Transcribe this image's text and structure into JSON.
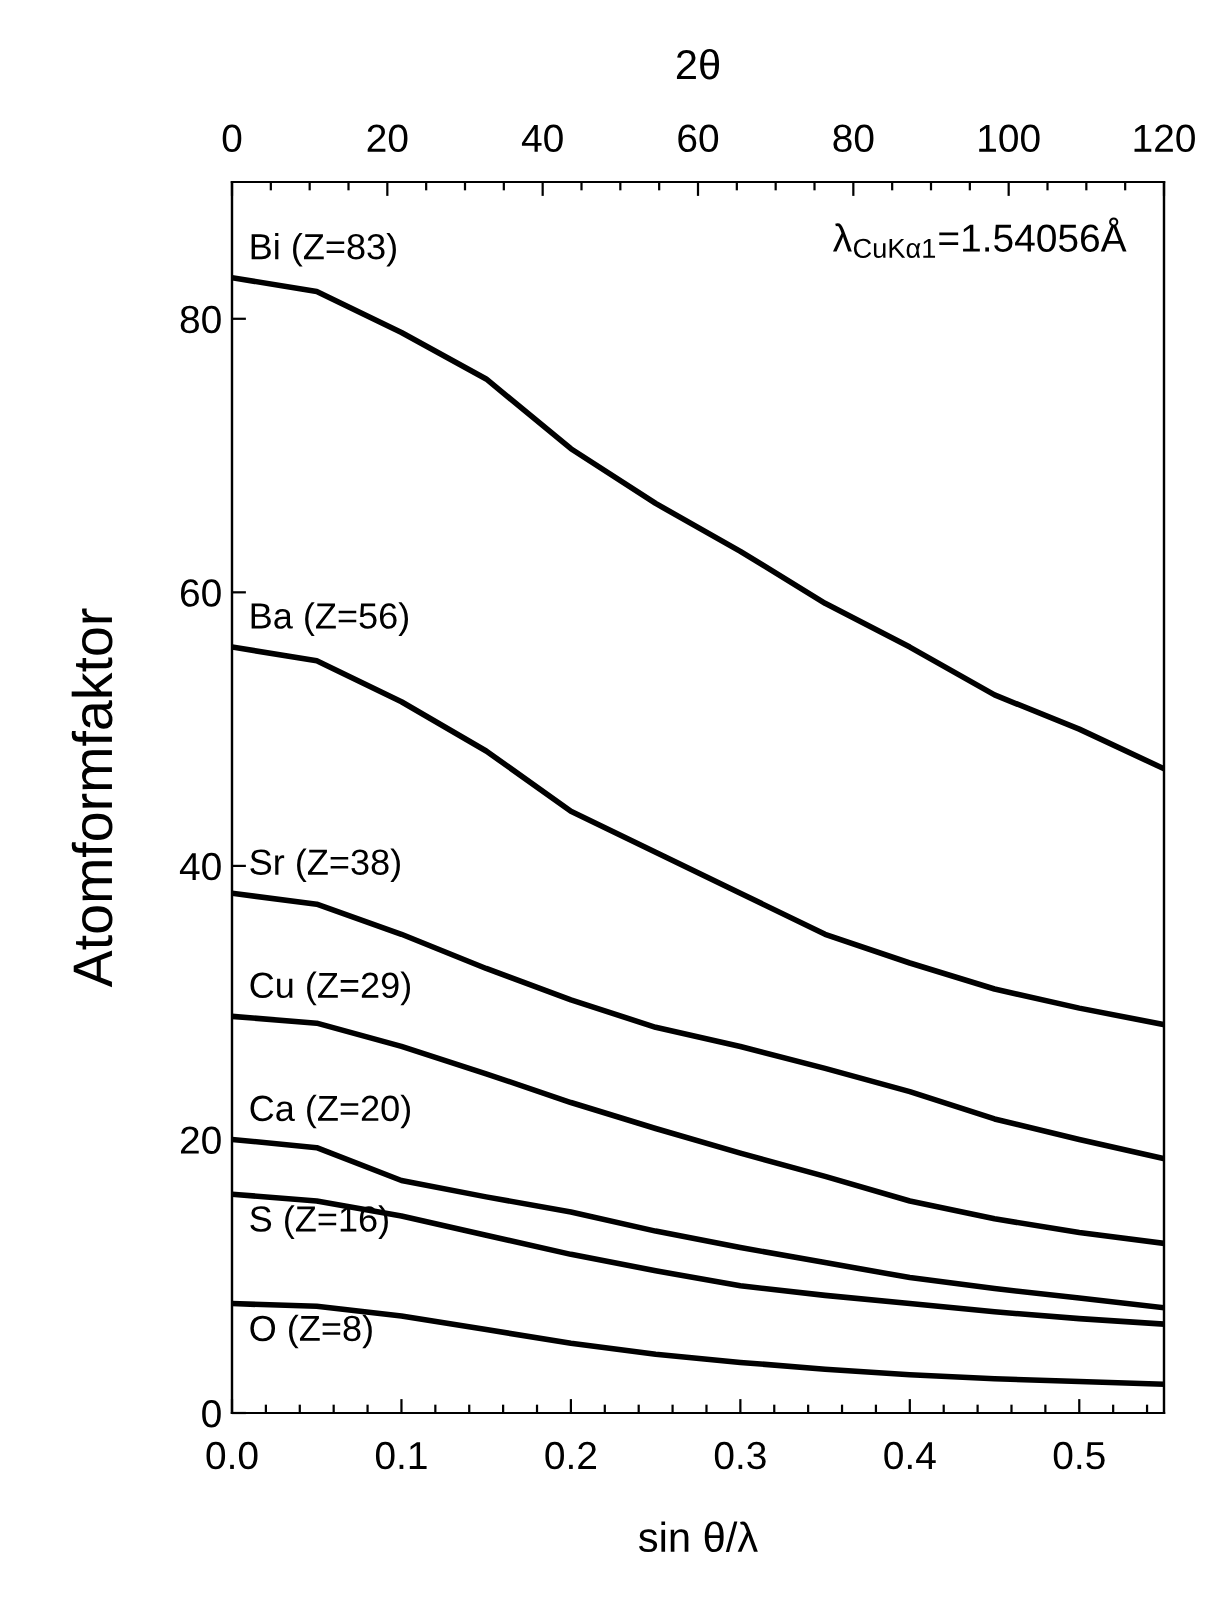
{
  "chart_data": {
    "type": "line",
    "xlabel": "sin θ/λ",
    "ylabel": "Atomformfaktor",
    "x2label": "2θ",
    "x": [
      0,
      0.05,
      0.1,
      0.15,
      0.2,
      0.25,
      0.3,
      0.35,
      0.4,
      0.45,
      0.5,
      0.55
    ],
    "series": [
      {
        "name": "Bi (Z=83)",
        "color": "#000000",
        "values": [
          83,
          82,
          79,
          75.6,
          70.5,
          66.5,
          63,
          59.2,
          56,
          52.5,
          50,
          47.1
        ]
      },
      {
        "name": "Ba (Z=56)",
        "color": "#000000",
        "values": [
          56,
          55,
          52,
          48.4,
          44,
          41,
          38,
          35,
          32.9,
          31,
          29.6,
          28.4
        ]
      },
      {
        "name": "Sr (Z=38)",
        "color": "#000000",
        "values": [
          38,
          37.2,
          35,
          32.5,
          30.2,
          28.2,
          26.8,
          25.2,
          23.5,
          21.5,
          20,
          18.6
        ]
      },
      {
        "name": "Cu (Z=29)",
        "color": "#000000",
        "values": [
          29,
          28.5,
          26.8,
          24.8,
          22.7,
          20.8,
          19,
          17.3,
          15.5,
          14.2,
          13.2,
          12.4
        ]
      },
      {
        "name": "Ca (Z=20)",
        "color": "#000000",
        "values": [
          20,
          19.4,
          17,
          15.8,
          14.7,
          13.3,
          12.1,
          11,
          9.9,
          9.1,
          8.4,
          7.7
        ]
      },
      {
        "name": "S (Z=16)",
        "color": "#000000",
        "values": [
          16,
          15.5,
          14.4,
          13,
          11.6,
          10.4,
          9.3,
          8.6,
          8,
          7.4,
          6.9,
          6.5
        ]
      },
      {
        "name": "O (Z=8)",
        "color": "#000000",
        "values": [
          8,
          7.8,
          7.1,
          6.1,
          5.1,
          4.3,
          3.7,
          3.2,
          2.8,
          2.5,
          2.3,
          2.1
        ]
      }
    ],
    "xlim": [
      0,
      0.55
    ],
    "xticks": [
      {
        "value": 0,
        "label": "0.0"
      },
      {
        "value": 0.02,
        "label": null
      },
      {
        "value": 0.04,
        "label": null
      },
      {
        "value": 0.06,
        "label": null
      },
      {
        "value": 0.08,
        "label": null
      },
      {
        "value": 0.1,
        "label": "0.1"
      },
      {
        "value": 0.12,
        "label": null
      },
      {
        "value": 0.14,
        "label": null
      },
      {
        "value": 0.16,
        "label": null
      },
      {
        "value": 0.18,
        "label": null
      },
      {
        "value": 0.2,
        "label": "0.2"
      },
      {
        "value": 0.22,
        "label": null
      },
      {
        "value": 0.24,
        "label": null
      },
      {
        "value": 0.26,
        "label": null
      },
      {
        "value": 0.28,
        "label": null
      },
      {
        "value": 0.3,
        "label": "0.3"
      },
      {
        "value": 0.32,
        "label": null
      },
      {
        "value": 0.34,
        "label": null
      },
      {
        "value": 0.36,
        "label": null
      },
      {
        "value": 0.38,
        "label": null
      },
      {
        "value": 0.4,
        "label": "0.4"
      },
      {
        "value": 0.42,
        "label": null
      },
      {
        "value": 0.44,
        "label": null
      },
      {
        "value": 0.46,
        "label": null
      },
      {
        "value": 0.48,
        "label": null
      },
      {
        "value": 0.5,
        "label": "0.5"
      },
      {
        "value": 0.52,
        "label": null
      },
      {
        "value": 0.54,
        "label": null
      }
    ],
    "x2lim": [
      0,
      120
    ],
    "x2ticks": [
      0,
      {
        "value": 5,
        "label": null
      },
      {
        "value": 10,
        "label": null
      },
      {
        "value": 15,
        "label": null
      },
      20,
      {
        "value": 25,
        "label": null
      },
      {
        "value": 30,
        "label": null
      },
      {
        "value": 35,
        "label": null
      },
      40,
      {
        "value": 45,
        "label": null
      },
      {
        "value": 50,
        "label": null
      },
      {
        "value": 55,
        "label": null
      },
      60,
      {
        "value": 65,
        "label": null
      },
      {
        "value": 70,
        "label": null
      },
      {
        "value": 75,
        "label": null
      },
      80,
      {
        "value": 85,
        "label": null
      },
      {
        "value": 90,
        "label": null
      },
      {
        "value": 95,
        "label": null
      },
      100,
      {
        "value": 105,
        "label": null
      },
      {
        "value": 110,
        "label": null
      },
      {
        "value": 115,
        "label": null
      },
      120
    ],
    "ylim": [
      0,
      90
    ],
    "yticks": [
      0,
      20,
      40,
      60,
      80
    ],
    "annotations": [
      "λ$_{CuKα1}$=1.54056Å"
    ],
    "grid": false,
    "legend": false,
    "marker": "none",
    "line_style": "solid"
  }
}
